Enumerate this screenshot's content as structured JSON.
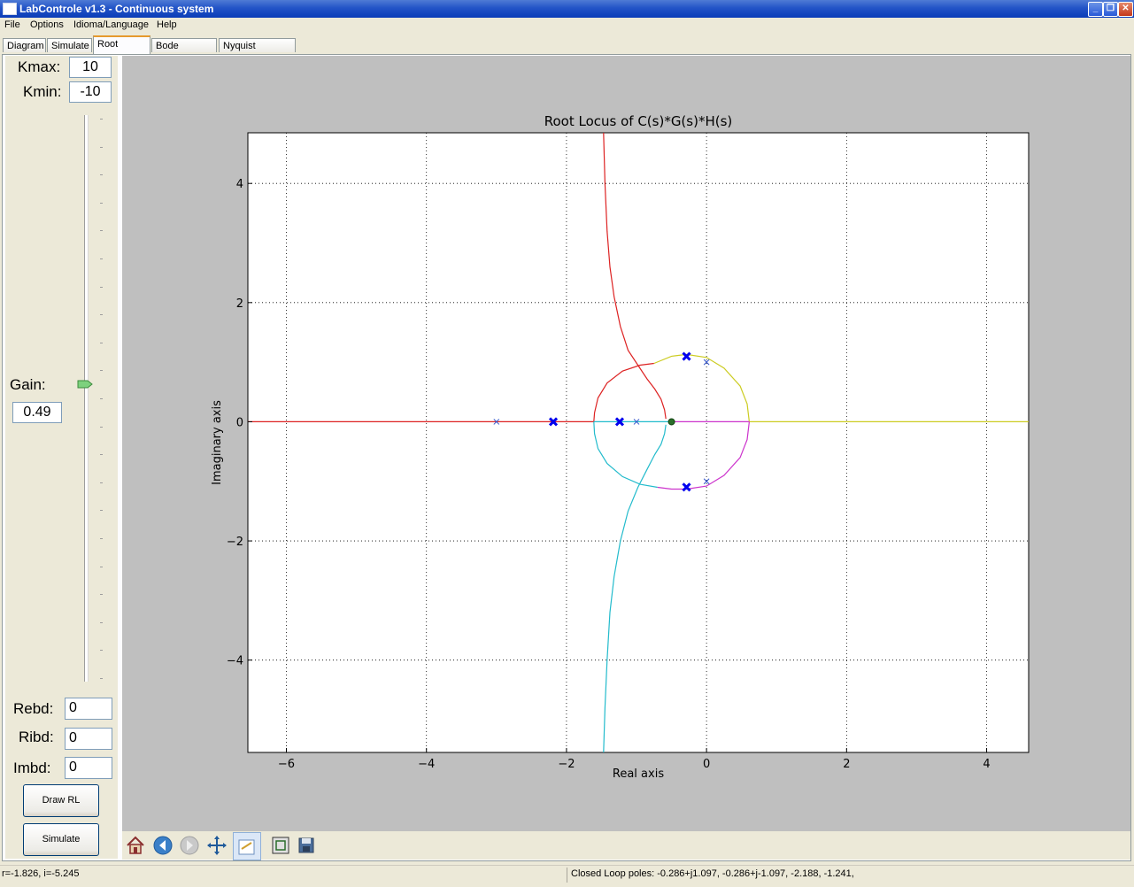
{
  "window": {
    "title": "LabControle v1.3 - Continuous system"
  },
  "menu": [
    "File",
    "Options",
    "Idioma/Language",
    "Help"
  ],
  "tabs": [
    "Diagram",
    "Simulate",
    "Root Locus",
    "Bode diagram",
    "Nyquist Diagram"
  ],
  "active_tab": "Root Locus",
  "left_panel": {
    "kmax_label": "Kmax:",
    "kmax_value": "10",
    "kmin_label": "Kmin:",
    "kmin_value": "-10",
    "gain_label": "Gain:",
    "gain_value": "0.49",
    "gain_slider_fraction": 0.525,
    "rebd_label": "Rebd:",
    "rebd_value": "0",
    "ribd_label": "Ribd:",
    "ribd_value": "0",
    "imbd_label": "Imbd:",
    "imbd_value": "0",
    "draw_button": "Draw RL",
    "simulate_button": "Simulate"
  },
  "toolbar": [
    "home-icon",
    "back-icon",
    "forward-icon",
    "pan-icon",
    "configure-subplots-icon",
    "zoom-rect-icon",
    "save-icon"
  ],
  "status": {
    "coords": "r=-1.826, i=-5.245",
    "poles": "Closed Loop poles: -0.286+j1.097, -0.286+j-1.097, -2.188, -1.241,"
  },
  "chart_data": {
    "type": "scatter",
    "title": "Root Locus of C(s)*G(s)*H(s)",
    "xlabel": "Real axis",
    "ylabel": "Imaginary axis",
    "xlim": [
      -6.55,
      4.6
    ],
    "ylim": [
      -5.55,
      4.85
    ],
    "xticks": [
      -6,
      -4,
      -2,
      0,
      2,
      4
    ],
    "yticks": [
      -4,
      -2,
      0,
      2,
      4
    ],
    "xtick_labels": [
      "−6",
      "−4",
      "−2",
      "0",
      "2",
      "4"
    ],
    "ytick_labels": [
      "−4",
      "−2",
      "0",
      "2",
      "4"
    ],
    "grid": true,
    "open_loop_poles": [
      [
        -3.0,
        0
      ],
      [
        -1.0,
        0
      ],
      [
        0.0,
        1.0
      ],
      [
        0.0,
        -1.0
      ]
    ],
    "open_loop_zeros": [
      [
        -0.5,
        0
      ]
    ],
    "closed_loop_poles": [
      [
        -0.286,
        1.097
      ],
      [
        -0.286,
        -1.097
      ],
      [
        -2.188,
        0
      ],
      [
        -1.241,
        0
      ]
    ],
    "series": [
      {
        "color": "#dd2222",
        "points": [
          [
            -1.47,
            4.85
          ],
          [
            -1.45,
            4.0
          ],
          [
            -1.42,
            3.2
          ],
          [
            -1.38,
            2.6
          ],
          [
            -1.32,
            2.1
          ],
          [
            -1.23,
            1.6
          ],
          [
            -1.12,
            1.2
          ],
          [
            -0.98,
            0.95
          ],
          [
            -0.85,
            0.72
          ],
          [
            -0.74,
            0.55
          ],
          [
            -0.65,
            0.38
          ],
          [
            -0.6,
            0.2
          ],
          [
            -0.58,
            0.05
          ]
        ]
      },
      {
        "color": "#dd2222",
        "points": [
          [
            -0.75,
            0.98
          ],
          [
            -0.95,
            0.95
          ],
          [
            -1.2,
            0.85
          ],
          [
            -1.42,
            0.65
          ],
          [
            -1.55,
            0.4
          ],
          [
            -1.6,
            0.15
          ],
          [
            -1.61,
            0
          ]
        ]
      },
      {
        "color": "#dd2222",
        "points": [
          [
            -6.55,
            0
          ],
          [
            -1.61,
            0
          ]
        ]
      },
      {
        "color": "#22bbcc",
        "points": [
          [
            -1.47,
            -5.55
          ],
          [
            -1.45,
            -4.8
          ],
          [
            -1.42,
            -4.0
          ],
          [
            -1.38,
            -3.2
          ],
          [
            -1.32,
            -2.6
          ],
          [
            -1.23,
            -2.0
          ],
          [
            -1.12,
            -1.5
          ],
          [
            -0.98,
            -1.1
          ],
          [
            -0.85,
            -0.8
          ],
          [
            -0.74,
            -0.55
          ],
          [
            -0.65,
            -0.38
          ],
          [
            -0.6,
            -0.2
          ],
          [
            -0.58,
            -0.05
          ]
        ]
      },
      {
        "color": "#22bbcc",
        "points": [
          [
            -1.61,
            0
          ],
          [
            -1.6,
            -0.2
          ],
          [
            -1.55,
            -0.45
          ],
          [
            -1.42,
            -0.7
          ],
          [
            -1.2,
            -0.92
          ],
          [
            -0.95,
            -1.05
          ],
          [
            -0.7,
            -1.1
          ]
        ]
      },
      {
        "color": "#22bbcc",
        "points": [
          [
            -1.61,
            0
          ],
          [
            -0.5,
            0
          ]
        ]
      },
      {
        "color": "#cccc22",
        "points": [
          [
            -0.75,
            0.98
          ],
          [
            -0.5,
            1.1
          ],
          [
            -0.286,
            1.13
          ],
          [
            0.0,
            1.08
          ],
          [
            0.25,
            0.9
          ],
          [
            0.48,
            0.6
          ],
          [
            0.58,
            0.3
          ],
          [
            0.61,
            0
          ]
        ]
      },
      {
        "color": "#cccc22",
        "points": [
          [
            0.61,
            0
          ],
          [
            4.6,
            0
          ]
        ]
      },
      {
        "color": "#cc33cc",
        "points": [
          [
            -0.7,
            -1.1
          ],
          [
            -0.5,
            -1.13
          ],
          [
            -0.286,
            -1.13
          ],
          [
            0.0,
            -1.08
          ],
          [
            0.25,
            -0.9
          ],
          [
            0.48,
            -0.6
          ],
          [
            0.58,
            -0.3
          ],
          [
            0.61,
            0
          ]
        ]
      },
      {
        "color": "#cc33cc",
        "points": [
          [
            -0.5,
            0
          ],
          [
            0.61,
            0
          ]
        ]
      }
    ]
  }
}
